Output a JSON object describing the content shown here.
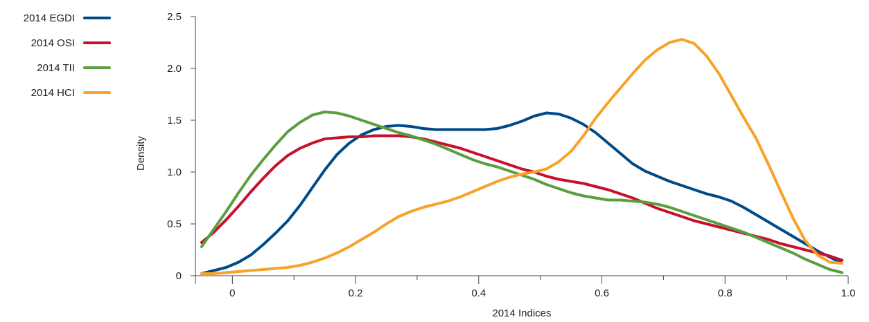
{
  "chart_data": {
    "type": "line",
    "xlabel": "2014 Indices",
    "ylabel": "Density",
    "xlim": [
      -0.06,
      1.0
    ],
    "ylim": [
      0,
      2.5
    ],
    "x_ticks": [
      0,
      0.2,
      0.4,
      0.6,
      0.8,
      1.0
    ],
    "x_tick_labels": [
      "0",
      "0.2",
      "0.4",
      "0.6",
      "0.8",
      "1.0"
    ],
    "y_ticks": [
      0,
      0.5,
      1.0,
      1.5,
      2.0,
      2.5
    ],
    "y_tick_labels": [
      "0",
      "0.5",
      "1.0",
      "1.5",
      "2.0",
      "2.5"
    ],
    "legend_position": "top-left",
    "grid": false,
    "series": [
      {
        "name": "2014 EGDI",
        "color": "#004b87",
        "x": [
          -0.05,
          -0.03,
          -0.01,
          0.01,
          0.03,
          0.05,
          0.07,
          0.09,
          0.11,
          0.13,
          0.15,
          0.17,
          0.19,
          0.21,
          0.23,
          0.25,
          0.27,
          0.29,
          0.31,
          0.33,
          0.35,
          0.37,
          0.39,
          0.41,
          0.43,
          0.45,
          0.47,
          0.49,
          0.51,
          0.53,
          0.55,
          0.57,
          0.59,
          0.61,
          0.63,
          0.65,
          0.67,
          0.69,
          0.71,
          0.73,
          0.75,
          0.77,
          0.79,
          0.81,
          0.83,
          0.85,
          0.87,
          0.89,
          0.91,
          0.93,
          0.95,
          0.97,
          0.99
        ],
        "y": [
          0.02,
          0.05,
          0.08,
          0.13,
          0.2,
          0.3,
          0.41,
          0.53,
          0.68,
          0.85,
          1.02,
          1.17,
          1.28,
          1.36,
          1.41,
          1.44,
          1.45,
          1.44,
          1.42,
          1.41,
          1.41,
          1.41,
          1.41,
          1.41,
          1.42,
          1.45,
          1.49,
          1.54,
          1.57,
          1.56,
          1.52,
          1.46,
          1.38,
          1.28,
          1.18,
          1.08,
          1.01,
          0.96,
          0.91,
          0.87,
          0.83,
          0.79,
          0.76,
          0.72,
          0.66,
          0.59,
          0.52,
          0.45,
          0.38,
          0.31,
          0.24,
          0.18,
          0.12
        ]
      },
      {
        "name": "2014 OSI",
        "color": "#c8102e",
        "x": [
          -0.05,
          -0.03,
          -0.01,
          0.01,
          0.03,
          0.05,
          0.07,
          0.09,
          0.11,
          0.13,
          0.15,
          0.17,
          0.19,
          0.21,
          0.23,
          0.25,
          0.27,
          0.29,
          0.31,
          0.33,
          0.35,
          0.37,
          0.39,
          0.41,
          0.43,
          0.45,
          0.47,
          0.49,
          0.51,
          0.53,
          0.55,
          0.57,
          0.59,
          0.61,
          0.63,
          0.65,
          0.67,
          0.69,
          0.71,
          0.73,
          0.75,
          0.77,
          0.79,
          0.81,
          0.83,
          0.85,
          0.87,
          0.89,
          0.91,
          0.93,
          0.95,
          0.97,
          0.99
        ],
        "y": [
          0.32,
          0.42,
          0.54,
          0.67,
          0.81,
          0.94,
          1.06,
          1.16,
          1.23,
          1.28,
          1.32,
          1.33,
          1.34,
          1.34,
          1.35,
          1.35,
          1.35,
          1.34,
          1.32,
          1.29,
          1.26,
          1.23,
          1.19,
          1.15,
          1.11,
          1.07,
          1.03,
          1.0,
          0.96,
          0.93,
          0.91,
          0.89,
          0.86,
          0.83,
          0.79,
          0.75,
          0.7,
          0.65,
          0.61,
          0.57,
          0.53,
          0.5,
          0.47,
          0.44,
          0.41,
          0.38,
          0.35,
          0.31,
          0.28,
          0.25,
          0.22,
          0.19,
          0.15
        ]
      },
      {
        "name": "2014 TII",
        "color": "#5a9e3f",
        "x": [
          -0.05,
          -0.03,
          -0.01,
          0.01,
          0.03,
          0.05,
          0.07,
          0.09,
          0.11,
          0.13,
          0.15,
          0.17,
          0.19,
          0.21,
          0.23,
          0.25,
          0.27,
          0.29,
          0.31,
          0.33,
          0.35,
          0.37,
          0.39,
          0.41,
          0.43,
          0.45,
          0.47,
          0.49,
          0.51,
          0.53,
          0.55,
          0.57,
          0.59,
          0.61,
          0.63,
          0.65,
          0.67,
          0.69,
          0.71,
          0.73,
          0.75,
          0.77,
          0.79,
          0.81,
          0.83,
          0.85,
          0.87,
          0.89,
          0.91,
          0.93,
          0.95,
          0.97,
          0.99
        ],
        "y": [
          0.28,
          0.45,
          0.62,
          0.8,
          0.97,
          1.12,
          1.26,
          1.39,
          1.48,
          1.55,
          1.58,
          1.57,
          1.54,
          1.5,
          1.46,
          1.42,
          1.38,
          1.35,
          1.31,
          1.27,
          1.22,
          1.17,
          1.12,
          1.08,
          1.05,
          1.01,
          0.97,
          0.93,
          0.88,
          0.84,
          0.8,
          0.77,
          0.75,
          0.73,
          0.73,
          0.72,
          0.71,
          0.69,
          0.66,
          0.62,
          0.58,
          0.54,
          0.5,
          0.46,
          0.42,
          0.37,
          0.32,
          0.27,
          0.22,
          0.16,
          0.11,
          0.06,
          0.03
        ]
      },
      {
        "name": "2014 HCI",
        "color": "#f7a229",
        "x": [
          -0.05,
          -0.03,
          -0.01,
          0.01,
          0.03,
          0.05,
          0.07,
          0.09,
          0.11,
          0.13,
          0.15,
          0.17,
          0.19,
          0.21,
          0.23,
          0.25,
          0.27,
          0.29,
          0.31,
          0.33,
          0.35,
          0.37,
          0.39,
          0.41,
          0.43,
          0.45,
          0.47,
          0.49,
          0.51,
          0.53,
          0.55,
          0.57,
          0.59,
          0.61,
          0.63,
          0.65,
          0.67,
          0.69,
          0.71,
          0.73,
          0.75,
          0.77,
          0.79,
          0.81,
          0.83,
          0.85,
          0.87,
          0.89,
          0.91,
          0.93,
          0.95,
          0.97,
          0.99
        ],
        "y": [
          0.02,
          0.02,
          0.03,
          0.04,
          0.05,
          0.06,
          0.07,
          0.08,
          0.1,
          0.13,
          0.17,
          0.22,
          0.28,
          0.35,
          0.42,
          0.5,
          0.57,
          0.62,
          0.66,
          0.69,
          0.72,
          0.76,
          0.81,
          0.86,
          0.91,
          0.95,
          0.98,
          1.0,
          1.03,
          1.1,
          1.2,
          1.35,
          1.52,
          1.67,
          1.81,
          1.95,
          2.08,
          2.18,
          2.25,
          2.28,
          2.24,
          2.12,
          1.95,
          1.74,
          1.53,
          1.33,
          1.08,
          0.82,
          0.56,
          0.34,
          0.2,
          0.13,
          0.12
        ]
      }
    ]
  }
}
